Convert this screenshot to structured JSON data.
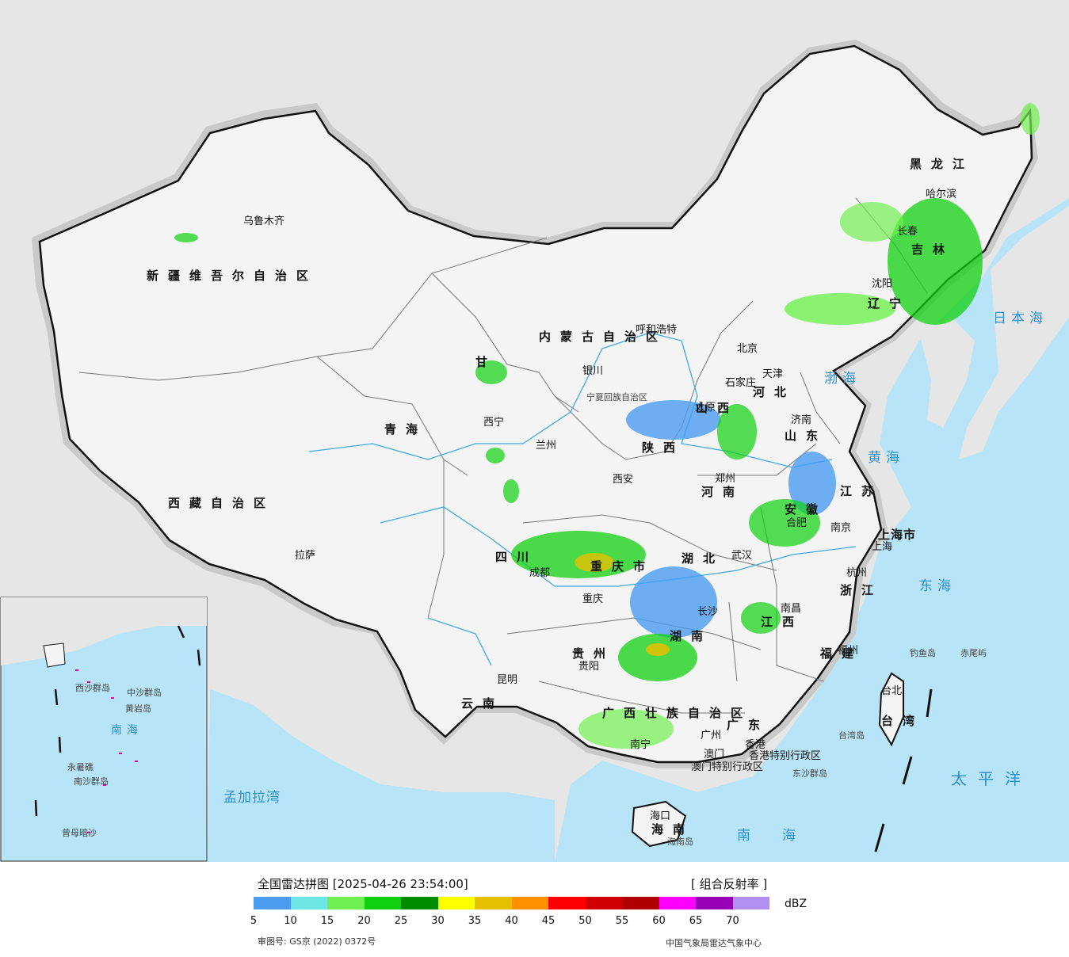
{
  "map": {
    "provinces": [
      "新疆维吾尔自治区",
      "西藏自治区",
      "青海",
      "甘",
      "内蒙古自治区",
      "黑龙江",
      "吉林",
      "辽宁",
      "河北",
      "山西",
      "陕西",
      "山东",
      "河南",
      "江苏",
      "安徽",
      "湖北",
      "四川",
      "重庆市",
      "湖南",
      "江西",
      "浙江",
      "福建",
      "贵州",
      "云南",
      "广西壮族自治区",
      "广东",
      "海南",
      "台湾",
      "上海市",
      "宁夏回族自治区",
      "香港特别行政区",
      "澳门特别行政区"
    ],
    "cities": [
      "乌鲁木齐",
      "拉萨",
      "西宁",
      "兰州",
      "银川",
      "呼和浩特",
      "北京",
      "天津",
      "石家庄",
      "太原",
      "济南",
      "西安",
      "郑州",
      "南京",
      "合肥",
      "上海",
      "武汉",
      "杭州",
      "成都",
      "重庆",
      "南昌",
      "长沙",
      "福州",
      "贵阳",
      "昆明",
      "南宁",
      "广州",
      "香港",
      "澳门",
      "海口",
      "台北",
      "哈尔滨",
      "长春",
      "沈阳"
    ],
    "seas": [
      "日本海",
      "渤海",
      "黄海",
      "东海",
      "太平洋",
      "南海",
      "孟加拉湾"
    ],
    "islands": [
      "钓鱼岛",
      "赤尾屿",
      "台湾岛",
      "东沙群岛",
      "海南岛"
    ],
    "inset_labels": [
      "西沙群岛",
      "中沙群岛",
      "南沙群岛",
      "黄岩岛",
      "永暑礁",
      "曾母暗沙",
      "南海"
    ]
  },
  "footer": {
    "title": "全国雷达拼图 [2025-04-26 23:54:00]",
    "product": "[ 组合反射率 ]",
    "unit": "dBZ",
    "review_number": "审图号: GS京 (2022) 0372号",
    "agency": "中国气象局雷达气象中心"
  },
  "legend": {
    "colors": [
      "#4a9cf0",
      "#6ee6e6",
      "#70f050",
      "#10d010",
      "#008c00",
      "#ffff00",
      "#e6c000",
      "#ff9000",
      "#ff0000",
      "#d00000",
      "#b00000",
      "#ff00ff",
      "#9800b8",
      "#b090f0"
    ],
    "ticks": [
      "5",
      "10",
      "15",
      "20",
      "25",
      "30",
      "35",
      "40",
      "45",
      "50",
      "55",
      "60",
      "65",
      "70"
    ]
  }
}
